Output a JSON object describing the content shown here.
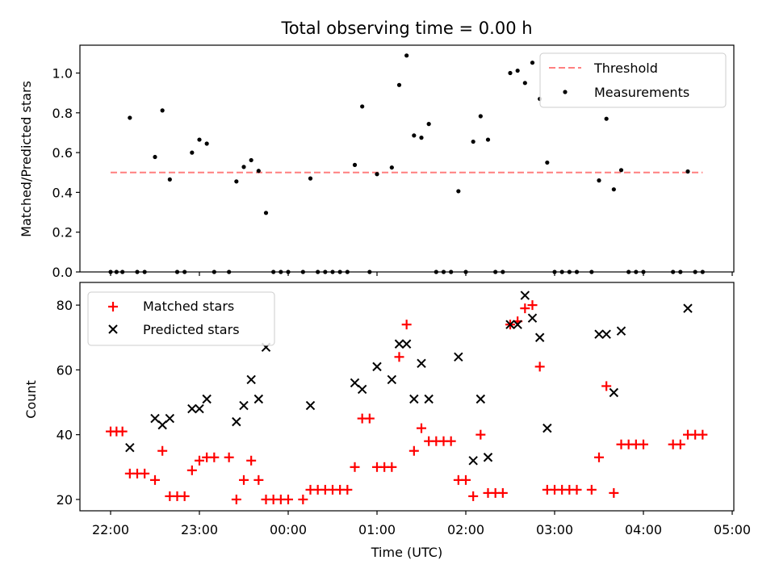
{
  "chart_data": [
    {
      "type": "scatter",
      "title": "Total observing time = 0.00 h",
      "xlabel": "",
      "ylabel": "Matched/Predicted stars",
      "xlim": [
        "21:40",
        "05:00"
      ],
      "ylim": [
        0,
        1.14
      ],
      "yticks": [
        "0.0",
        "0.2",
        "0.4",
        "0.6",
        "0.8",
        "1.0"
      ],
      "grid": false,
      "legend": "top-right",
      "threshold": {
        "name": "Threshold",
        "value": 0.5,
        "x_start": "22:00",
        "x_end": "04:40",
        "color": "#ff7f7f"
      },
      "series": [
        {
          "name": "Measurements",
          "color": "#000000",
          "points": [
            [
              "22:00",
              0
            ],
            [
              "22:04",
              0
            ],
            [
              "22:08",
              0
            ],
            [
              "22:13",
              0.775
            ],
            [
              "22:18",
              0
            ],
            [
              "22:23",
              0
            ],
            [
              "22:30",
              0.578
            ],
            [
              "22:35",
              0.812
            ],
            [
              "22:40",
              0.465
            ],
            [
              "22:45",
              0
            ],
            [
              "22:50",
              0
            ],
            [
              "22:55",
              0.6
            ],
            [
              "23:00",
              0.665
            ],
            [
              "23:05",
              0.645
            ],
            [
              "23:10",
              0
            ],
            [
              "23:20",
              0
            ],
            [
              "23:25",
              0.455
            ],
            [
              "23:30",
              0.528
            ],
            [
              "23:35",
              0.562
            ],
            [
              "23:40",
              0.508
            ],
            [
              "23:45",
              0.297
            ],
            [
              "23:50",
              0
            ],
            [
              "23:55",
              0
            ],
            [
              "00:00",
              0
            ],
            [
              "00:10",
              0
            ],
            [
              "00:15",
              0.47
            ],
            [
              "00:20",
              0
            ],
            [
              "00:25",
              0
            ],
            [
              "00:30",
              0
            ],
            [
              "00:35",
              0
            ],
            [
              "00:40",
              0
            ],
            [
              "00:45",
              0.538
            ],
            [
              "00:50",
              0.832
            ],
            [
              "00:55",
              0
            ],
            [
              "01:00",
              0.492
            ],
            [
              "01:10",
              0.525
            ],
            [
              "01:15",
              0.94
            ],
            [
              "01:20",
              1.088
            ],
            [
              "01:25",
              0.686
            ],
            [
              "01:30",
              0.675
            ],
            [
              "01:35",
              0.744
            ],
            [
              "01:40",
              0
            ],
            [
              "01:45",
              0
            ],
            [
              "01:50",
              0
            ],
            [
              "01:55",
              0.406
            ],
            [
              "02:00",
              0
            ],
            [
              "02:05",
              0.655
            ],
            [
              "02:10",
              0.783
            ],
            [
              "02:15",
              0.665
            ],
            [
              "02:20",
              0
            ],
            [
              "02:25",
              0
            ],
            [
              "02:30",
              1.0
            ],
            [
              "02:35",
              1.012
            ],
            [
              "02:40",
              0.95
            ],
            [
              "02:45",
              1.052
            ],
            [
              "02:50",
              0.87
            ],
            [
              "02:55",
              0.55
            ],
            [
              "03:00",
              0
            ],
            [
              "03:05",
              0
            ],
            [
              "03:10",
              0
            ],
            [
              "03:15",
              0
            ],
            [
              "03:25",
              0
            ],
            [
              "03:30",
              0.46
            ],
            [
              "03:35",
              0.77
            ],
            [
              "03:40",
              0.415
            ],
            [
              "03:45",
              0.512
            ],
            [
              "03:50",
              0
            ],
            [
              "03:55",
              0
            ],
            [
              "04:00",
              0
            ],
            [
              "04:20",
              0
            ],
            [
              "04:25",
              0
            ],
            [
              "04:30",
              0.505
            ],
            [
              "04:35",
              0
            ],
            [
              "04:40",
              0
            ]
          ]
        }
      ]
    },
    {
      "type": "scatter",
      "title": "",
      "xlabel": "Time (UTC)",
      "ylabel": "Count",
      "xlim": [
        "21:40",
        "05:00"
      ],
      "ylim": [
        16.5,
        87
      ],
      "xticks": [
        "22:00",
        "23:00",
        "00:00",
        "01:00",
        "02:00",
        "03:00",
        "04:00",
        "05:00"
      ],
      "yticks": [
        "20",
        "40",
        "60",
        "80"
      ],
      "grid": false,
      "legend": "top-left",
      "series": [
        {
          "name": "Matched stars",
          "marker": "plus",
          "color": "#ff0000",
          "points": [
            [
              "22:00",
              41
            ],
            [
              "22:04",
              41
            ],
            [
              "22:08",
              41
            ],
            [
              "22:13",
              28
            ],
            [
              "22:18",
              28
            ],
            [
              "22:23",
              28
            ],
            [
              "22:30",
              26
            ],
            [
              "22:35",
              35
            ],
            [
              "22:40",
              21
            ],
            [
              "22:45",
              21
            ],
            [
              "22:50",
              21
            ],
            [
              "22:55",
              29
            ],
            [
              "23:00",
              32
            ],
            [
              "23:05",
              33
            ],
            [
              "23:10",
              33
            ],
            [
              "23:20",
              33
            ],
            [
              "23:25",
              20
            ],
            [
              "23:30",
              26
            ],
            [
              "23:35",
              32
            ],
            [
              "23:40",
              26
            ],
            [
              "23:45",
              20
            ],
            [
              "23:50",
              20
            ],
            [
              "23:55",
              20
            ],
            [
              "00:00",
              20
            ],
            [
              "00:10",
              20
            ],
            [
              "00:15",
              23
            ],
            [
              "00:20",
              23
            ],
            [
              "00:25",
              23
            ],
            [
              "00:30",
              23
            ],
            [
              "00:35",
              23
            ],
            [
              "00:40",
              23
            ],
            [
              "00:45",
              30
            ],
            [
              "00:50",
              45
            ],
            [
              "00:55",
              45
            ],
            [
              "01:00",
              30
            ],
            [
              "01:05",
              30
            ],
            [
              "01:10",
              30
            ],
            [
              "01:15",
              64
            ],
            [
              "01:20",
              74
            ],
            [
              "01:25",
              35
            ],
            [
              "01:30",
              42
            ],
            [
              "01:35",
              38
            ],
            [
              "01:40",
              38
            ],
            [
              "01:45",
              38
            ],
            [
              "01:50",
              38
            ],
            [
              "01:55",
              26
            ],
            [
              "02:00",
              26
            ],
            [
              "02:05",
              21
            ],
            [
              "02:10",
              40
            ],
            [
              "02:15",
              22
            ],
            [
              "02:20",
              22
            ],
            [
              "02:25",
              22
            ],
            [
              "02:30",
              74
            ],
            [
              "02:35",
              75
            ],
            [
              "02:40",
              79
            ],
            [
              "02:45",
              80
            ],
            [
              "02:50",
              61
            ],
            [
              "02:55",
              23
            ],
            [
              "03:00",
              23
            ],
            [
              "03:05",
              23
            ],
            [
              "03:10",
              23
            ],
            [
              "03:15",
              23
            ],
            [
              "03:25",
              23
            ],
            [
              "03:30",
              33
            ],
            [
              "03:35",
              55
            ],
            [
              "03:40",
              22
            ],
            [
              "03:45",
              37
            ],
            [
              "03:50",
              37
            ],
            [
              "03:55",
              37
            ],
            [
              "04:00",
              37
            ],
            [
              "04:20",
              37
            ],
            [
              "04:25",
              37
            ],
            [
              "04:30",
              40
            ],
            [
              "04:35",
              40
            ],
            [
              "04:40",
              40
            ]
          ]
        },
        {
          "name": "Predicted stars",
          "marker": "x",
          "color": "#000000",
          "points": [
            [
              "22:13",
              36
            ],
            [
              "22:30",
              45
            ],
            [
              "22:35",
              43
            ],
            [
              "22:40",
              45
            ],
            [
              "22:55",
              48
            ],
            [
              "23:00",
              48
            ],
            [
              "23:05",
              51
            ],
            [
              "23:25",
              44
            ],
            [
              "23:30",
              49
            ],
            [
              "23:35",
              57
            ],
            [
              "23:40",
              51
            ],
            [
              "23:45",
              67
            ],
            [
              "00:15",
              49
            ],
            [
              "00:45",
              56
            ],
            [
              "00:50",
              54
            ],
            [
              "01:00",
              61
            ],
            [
              "01:10",
              57
            ],
            [
              "01:15",
              68
            ],
            [
              "01:20",
              68
            ],
            [
              "01:25",
              51
            ],
            [
              "01:30",
              62
            ],
            [
              "01:35",
              51
            ],
            [
              "01:55",
              64
            ],
            [
              "02:05",
              32
            ],
            [
              "02:10",
              51
            ],
            [
              "02:15",
              33
            ],
            [
              "02:30",
              74
            ],
            [
              "02:35",
              74
            ],
            [
              "02:40",
              83
            ],
            [
              "02:45",
              76
            ],
            [
              "02:50",
              70
            ],
            [
              "02:55",
              42
            ],
            [
              "03:30",
              71
            ],
            [
              "03:35",
              71
            ],
            [
              "03:40",
              53
            ],
            [
              "03:45",
              72
            ],
            [
              "04:30",
              79
            ]
          ]
        }
      ]
    }
  ]
}
